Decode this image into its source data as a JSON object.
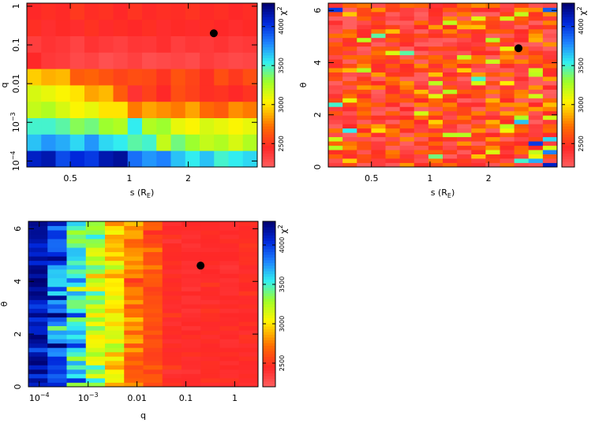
{
  "chart_data": [
    {
      "id": "panel_s_q",
      "type": "heatmap",
      "title": "",
      "xlabel": "s (R",
      "xlabel_sub": "E",
      "xlabel_close": ")",
      "ylabel": "q",
      "x_scale": "log",
      "y_scale": "log",
      "xlim": [
        0.3,
        4.5
      ],
      "ylim": [
        7e-05,
        1.2
      ],
      "x_ticks": [
        {
          "v": 0.5,
          "label": "0.5"
        },
        {
          "v": 1,
          "label": "1"
        },
        {
          "v": 2,
          "label": "2"
        }
      ],
      "y_ticks": [
        {
          "v": 1,
          "label": "1",
          "sup": ""
        },
        {
          "v": 0.1,
          "label": "0.1",
          "sup": ""
        },
        {
          "v": 0.01,
          "label": "0.01",
          "sup": ""
        },
        {
          "v": 0.001,
          "label": "10",
          "sup": "−3"
        },
        {
          "v": 0.0001,
          "label": "10",
          "sup": "−4"
        }
      ],
      "colorbar": {
        "label": "χ",
        "label_sup": "2",
        "range": [
          2200,
          4300
        ],
        "ticks": [
          {
            "v": 2500,
            "label": "2500"
          },
          {
            "v": 3000,
            "label": "3000"
          },
          {
            "v": 3500,
            "label": "3500"
          },
          {
            "v": 4000,
            "label": "4000"
          }
        ]
      },
      "n_cols": 16,
      "n_rows": 10,
      "grid_values": [
        [
          2450,
          2480,
          2460,
          2520,
          2470,
          2490,
          2450,
          2500,
          2460,
          2480,
          2470,
          2500,
          2460,
          2480,
          2450,
          2470
        ],
        [
          2480,
          2420,
          2460,
          2430,
          2490,
          2440,
          2470,
          2450,
          2480,
          2430,
          2460,
          2440,
          2470,
          2450,
          2430,
          2460
        ],
        [
          2350,
          2400,
          2380,
          2330,
          2400,
          2370,
          2340,
          2390,
          2380,
          2420,
          2350,
          2390,
          2370,
          2400,
          2360,
          2380
        ],
        [
          2450,
          2380,
          2360,
          2300,
          2330,
          2270,
          2300,
          2340,
          2280,
          2300,
          2320,
          2290,
          2360,
          2330,
          2300,
          2320
        ],
        [
          2950,
          2880,
          2900,
          2650,
          2680,
          2620,
          2560,
          2600,
          2580,
          2500,
          2620,
          2560,
          2480,
          2600,
          2520,
          2600
        ],
        [
          3150,
          3100,
          3050,
          3000,
          2850,
          2900,
          2650,
          2400,
          2550,
          2450,
          2600,
          2550,
          2480,
          2500,
          2450,
          2500
        ],
        [
          3200,
          3250,
          3150,
          3050,
          3100,
          3000,
          3000,
          2750,
          2850,
          2800,
          2750,
          2850,
          2700,
          2650,
          2800,
          2750
        ],
        [
          3500,
          3500,
          3450,
          3350,
          3400,
          3300,
          3250,
          3550,
          3250,
          3300,
          3100,
          3050,
          3150,
          3100,
          3050,
          3100
        ],
        [
          3650,
          3750,
          3700,
          3600,
          3750,
          3600,
          3550,
          3450,
          3500,
          3200,
          3400,
          3300,
          3200,
          3250,
          3150,
          3250
        ],
        [
          4100,
          4150,
          3950,
          4050,
          4000,
          4150,
          4200,
          3850,
          3750,
          3800,
          3650,
          3550,
          3650,
          3500,
          3550,
          3600
        ]
      ],
      "best_fit": {
        "x": 2.7,
        "y": 0.2
      }
    },
    {
      "id": "panel_s_theta",
      "type": "heatmap",
      "title": "",
      "xlabel": "s (R",
      "xlabel_sub": "E",
      "xlabel_close": ")",
      "ylabel": "θ",
      "x_scale": "log",
      "y_scale": "linear",
      "xlim": [
        0.3,
        4.5
      ],
      "ylim": [
        0,
        6.28
      ],
      "x_ticks": [
        {
          "v": 0.5,
          "label": "0.5"
        },
        {
          "v": 1,
          "label": "1"
        },
        {
          "v": 2,
          "label": "2"
        }
      ],
      "y_ticks": [
        {
          "v": 0,
          "label": "0"
        },
        {
          "v": 2,
          "label": "2"
        },
        {
          "v": 4,
          "label": "4"
        },
        {
          "v": 6,
          "label": "6"
        }
      ],
      "colorbar": {
        "label": "χ",
        "label_sup": "2",
        "range": [
          2200,
          4300
        ],
        "ticks": [
          {
            "v": 2500,
            "label": "2500"
          },
          {
            "v": 3000,
            "label": "3000"
          },
          {
            "v": 3500,
            "label": "3500"
          },
          {
            "v": 4000,
            "label": "4000"
          }
        ]
      },
      "n_cols": 16,
      "n_rows": 38,
      "base_value": 2480,
      "noise_seed": 7,
      "noise_amplitude": 650,
      "hot_spots": [
        {
          "col": 15,
          "row": 0,
          "v": 4100
        },
        {
          "col": 14,
          "row": 1,
          "v": 3700
        },
        {
          "col": 13,
          "row": 1,
          "v": 3500
        },
        {
          "col": 15,
          "row": 3,
          "v": 3800
        },
        {
          "col": 14,
          "row": 5,
          "v": 4000
        },
        {
          "col": 15,
          "row": 6,
          "v": 3600
        },
        {
          "col": 1,
          "row": 8,
          "v": 3550
        },
        {
          "col": 0,
          "row": 14,
          "v": 3500
        },
        {
          "col": 13,
          "row": 10,
          "v": 3650
        },
        {
          "col": 0,
          "row": 36,
          "v": 4000
        },
        {
          "col": 15,
          "row": 36,
          "v": 3900
        },
        {
          "col": 3,
          "row": 30,
          "v": 3450
        },
        {
          "col": 10,
          "row": 20,
          "v": 3500
        },
        {
          "col": 7,
          "row": 2,
          "v": 3400
        },
        {
          "col": 5,
          "row": 26,
          "v": 3450
        }
      ],
      "best_fit": {
        "x": 2.85,
        "y": 4.55
      }
    },
    {
      "id": "panel_q_theta",
      "type": "heatmap",
      "title": "",
      "xlabel": "q",
      "ylabel": "θ",
      "x_scale": "log",
      "y_scale": "linear",
      "xlim": [
        6e-05,
        3
      ],
      "ylim": [
        0,
        6.28
      ],
      "x_ticks": [
        {
          "v": 0.0001,
          "label": "10",
          "sup": "−4"
        },
        {
          "v": 0.001,
          "label": "10",
          "sup": "−3"
        },
        {
          "v": 0.01,
          "label": "0.01",
          "sup": ""
        },
        {
          "v": 0.1,
          "label": "0.1",
          "sup": ""
        },
        {
          "v": 1,
          "label": "1",
          "sup": ""
        }
      ],
      "y_ticks": [
        {
          "v": 0,
          "label": "0"
        },
        {
          "v": 2,
          "label": "2"
        },
        {
          "v": 4,
          "label": "4"
        },
        {
          "v": 6,
          "label": "6"
        }
      ],
      "colorbar": {
        "label": "χ",
        "label_sup": "2",
        "range": [
          2200,
          4300
        ],
        "ticks": [
          {
            "v": 2500,
            "label": "2500"
          },
          {
            "v": 3000,
            "label": "3000"
          },
          {
            "v": 3500,
            "label": "3500"
          },
          {
            "v": 4000,
            "label": "4000"
          }
        ]
      },
      "n_cols": 12,
      "n_rows": 38,
      "column_base_values": [
        4150,
        3800,
        3500,
        3150,
        2950,
        2750,
        2600,
        2450,
        2420,
        2450,
        2430,
        2460
      ],
      "column_noise": [
        250,
        450,
        450,
        350,
        300,
        250,
        150,
        80,
        70,
        60,
        60,
        60
      ],
      "noise_seed": 13,
      "best_fit": {
        "x": 0.2,
        "y": 4.6
      }
    }
  ]
}
